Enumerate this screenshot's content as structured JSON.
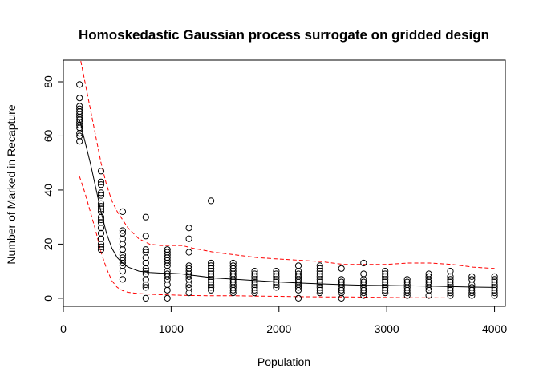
{
  "chart_data": {
    "type": "scatter",
    "title": "Homoskedastic Gaussian process surrogate on gridded design",
    "xlabel": "Population",
    "ylabel": "Number of Marked in Recapture",
    "xlim": [
      0,
      4100
    ],
    "ylim": [
      -3,
      88
    ],
    "x_ticks": [
      0,
      1000,
      2000,
      3000,
      4000
    ],
    "y_ticks": [
      0,
      20,
      40,
      60,
      80
    ],
    "grid": false,
    "colors": {
      "points": "#000000",
      "mean": "#000000",
      "bands": "#ff0000"
    },
    "points": [
      [
        150,
        79
      ],
      [
        150,
        74
      ],
      [
        150,
        71
      ],
      [
        150,
        70
      ],
      [
        150,
        69
      ],
      [
        150,
        68
      ],
      [
        150,
        67
      ],
      [
        150,
        66
      ],
      [
        150,
        65
      ],
      [
        150,
        64
      ],
      [
        150,
        63
      ],
      [
        150,
        61
      ],
      [
        150,
        60
      ],
      [
        150,
        58
      ],
      [
        350,
        47
      ],
      [
        350,
        43
      ],
      [
        350,
        42
      ],
      [
        350,
        39
      ],
      [
        350,
        38
      ],
      [
        350,
        35
      ],
      [
        350,
        34
      ],
      [
        350,
        33
      ],
      [
        350,
        32
      ],
      [
        350,
        30
      ],
      [
        350,
        29
      ],
      [
        350,
        28
      ],
      [
        350,
        26
      ],
      [
        350,
        24
      ],
      [
        350,
        22
      ],
      [
        350,
        20
      ],
      [
        350,
        19
      ],
      [
        350,
        18
      ],
      [
        550,
        32
      ],
      [
        550,
        25
      ],
      [
        550,
        24
      ],
      [
        550,
        22
      ],
      [
        550,
        20
      ],
      [
        550,
        18
      ],
      [
        550,
        16
      ],
      [
        550,
        15
      ],
      [
        550,
        14
      ],
      [
        550,
        13
      ],
      [
        550,
        12
      ],
      [
        550,
        10
      ],
      [
        550,
        7
      ],
      [
        765,
        30
      ],
      [
        765,
        23
      ],
      [
        765,
        18
      ],
      [
        765,
        17
      ],
      [
        765,
        15
      ],
      [
        765,
        13
      ],
      [
        765,
        11
      ],
      [
        765,
        10
      ],
      [
        765,
        9
      ],
      [
        765,
        7
      ],
      [
        765,
        5
      ],
      [
        765,
        4
      ],
      [
        765,
        0
      ],
      [
        965,
        18
      ],
      [
        965,
        17
      ],
      [
        965,
        16
      ],
      [
        965,
        15
      ],
      [
        965,
        14
      ],
      [
        965,
        13
      ],
      [
        965,
        12
      ],
      [
        965,
        10
      ],
      [
        965,
        9
      ],
      [
        965,
        8
      ],
      [
        965,
        7
      ],
      [
        965,
        5
      ],
      [
        965,
        3
      ],
      [
        965,
        0
      ],
      [
        1165,
        26
      ],
      [
        1165,
        22
      ],
      [
        1165,
        17
      ],
      [
        1165,
        12
      ],
      [
        1165,
        11
      ],
      [
        1165,
        10
      ],
      [
        1165,
        9
      ],
      [
        1165,
        8
      ],
      [
        1165,
        7
      ],
      [
        1165,
        5
      ],
      [
        1165,
        4
      ],
      [
        1165,
        2
      ],
      [
        1370,
        36
      ],
      [
        1370,
        13
      ],
      [
        1370,
        12
      ],
      [
        1370,
        11
      ],
      [
        1370,
        10
      ],
      [
        1370,
        9
      ],
      [
        1370,
        8
      ],
      [
        1370,
        7
      ],
      [
        1370,
        6
      ],
      [
        1370,
        5
      ],
      [
        1370,
        4
      ],
      [
        1370,
        3
      ],
      [
        1575,
        13
      ],
      [
        1575,
        12
      ],
      [
        1575,
        11
      ],
      [
        1575,
        10
      ],
      [
        1575,
        9
      ],
      [
        1575,
        8
      ],
      [
        1575,
        7
      ],
      [
        1575,
        6
      ],
      [
        1575,
        5
      ],
      [
        1575,
        4
      ],
      [
        1575,
        3
      ],
      [
        1575,
        2
      ],
      [
        1775,
        10
      ],
      [
        1775,
        9
      ],
      [
        1775,
        8
      ],
      [
        1775,
        7
      ],
      [
        1775,
        6
      ],
      [
        1775,
        5
      ],
      [
        1775,
        4
      ],
      [
        1775,
        3
      ],
      [
        1775,
        2
      ],
      [
        1975,
        10
      ],
      [
        1975,
        9
      ],
      [
        1975,
        8
      ],
      [
        1975,
        7
      ],
      [
        1975,
        6
      ],
      [
        1975,
        5
      ],
      [
        1975,
        4
      ],
      [
        2180,
        12
      ],
      [
        2180,
        10
      ],
      [
        2180,
        9
      ],
      [
        2180,
        8
      ],
      [
        2180,
        7
      ],
      [
        2180,
        6
      ],
      [
        2180,
        5
      ],
      [
        2180,
        4
      ],
      [
        2180,
        3
      ],
      [
        2180,
        0
      ],
      [
        2380,
        12
      ],
      [
        2380,
        11
      ],
      [
        2380,
        10
      ],
      [
        2380,
        9
      ],
      [
        2380,
        8
      ],
      [
        2380,
        7
      ],
      [
        2380,
        6
      ],
      [
        2380,
        5
      ],
      [
        2380,
        4
      ],
      [
        2380,
        3
      ],
      [
        2380,
        2
      ],
      [
        2580,
        11
      ],
      [
        2580,
        7
      ],
      [
        2580,
        6
      ],
      [
        2580,
        5
      ],
      [
        2580,
        4
      ],
      [
        2580,
        3
      ],
      [
        2580,
        2
      ],
      [
        2580,
        0
      ],
      [
        2785,
        13
      ],
      [
        2785,
        9
      ],
      [
        2785,
        7
      ],
      [
        2785,
        6
      ],
      [
        2785,
        5
      ],
      [
        2785,
        4
      ],
      [
        2785,
        3
      ],
      [
        2785,
        2
      ],
      [
        2785,
        1
      ],
      [
        2985,
        10
      ],
      [
        2985,
        9
      ],
      [
        2985,
        8
      ],
      [
        2985,
        7
      ],
      [
        2985,
        6
      ],
      [
        2985,
        5
      ],
      [
        2985,
        4
      ],
      [
        2985,
        3
      ],
      [
        2985,
        2
      ],
      [
        3190,
        7
      ],
      [
        3190,
        6
      ],
      [
        3190,
        5
      ],
      [
        3190,
        4
      ],
      [
        3190,
        3
      ],
      [
        3190,
        2
      ],
      [
        3190,
        1
      ],
      [
        3390,
        9
      ],
      [
        3390,
        8
      ],
      [
        3390,
        7
      ],
      [
        3390,
        6
      ],
      [
        3390,
        5
      ],
      [
        3390,
        4
      ],
      [
        3390,
        3
      ],
      [
        3390,
        1
      ],
      [
        3590,
        10
      ],
      [
        3590,
        8
      ],
      [
        3590,
        7
      ],
      [
        3590,
        6
      ],
      [
        3590,
        5
      ],
      [
        3590,
        4
      ],
      [
        3590,
        3
      ],
      [
        3590,
        2
      ],
      [
        3590,
        1
      ],
      [
        3790,
        8
      ],
      [
        3790,
        7
      ],
      [
        3790,
        5
      ],
      [
        3790,
        4
      ],
      [
        3790,
        3
      ],
      [
        3790,
        2
      ],
      [
        3790,
        1
      ],
      [
        4000,
        8
      ],
      [
        4000,
        7
      ],
      [
        4000,
        6
      ],
      [
        4000,
        5
      ],
      [
        4000,
        4
      ],
      [
        4000,
        3
      ],
      [
        4000,
        2
      ],
      [
        4000,
        1
      ]
    ],
    "mean_line": {
      "x": [
        150,
        200,
        250,
        300,
        350,
        400,
        450,
        500,
        550,
        600,
        700,
        800,
        900,
        1000,
        1100,
        1200,
        1400,
        1600,
        1800,
        2000,
        2200,
        2400,
        2600,
        2800,
        3000,
        3200,
        3400,
        3600,
        3800,
        4000
      ],
      "y": [
        66,
        58,
        50,
        41,
        32,
        24,
        18.5,
        15,
        13,
        11.5,
        10,
        9.5,
        9.3,
        9.2,
        9,
        8.5,
        7.5,
        7,
        6.5,
        6,
        5.6,
        5.3,
        5,
        4.8,
        4.7,
        4.6,
        4.5,
        4.3,
        4.1,
        4.0
      ]
    },
    "upper_band": {
      "x": [
        150,
        200,
        250,
        300,
        350,
        400,
        450,
        500,
        550,
        600,
        700,
        800,
        900,
        1000,
        1100,
        1200,
        1400,
        1600,
        1800,
        2000,
        2200,
        2400,
        2600,
        2800,
        3000,
        3200,
        3400,
        3600,
        3800,
        4000
      ],
      "y": [
        90,
        80,
        70,
        60,
        50,
        42,
        36,
        32,
        29,
        26,
        22,
        20,
        19.5,
        19.5,
        19.5,
        18.5,
        17,
        16,
        15,
        14.5,
        14,
        13.5,
        12.5,
        12.5,
        12.5,
        13,
        13,
        12.5,
        11.5,
        11
      ]
    },
    "lower_band": {
      "x": [
        150,
        200,
        250,
        300,
        350,
        400,
        450,
        500,
        550,
        600,
        700,
        800,
        900,
        1000,
        1100,
        1200,
        1400,
        1600,
        1800,
        2000,
        2200,
        2400,
        2600,
        2800,
        3000,
        3200,
        3400,
        3600,
        3800,
        4000
      ],
      "y": [
        45,
        39,
        32,
        25,
        17,
        11,
        6.5,
        4,
        2.8,
        2.2,
        1.7,
        1.5,
        1.3,
        1.2,
        1.1,
        1.0,
        0.9,
        0.9,
        0.8,
        0.7,
        0.6,
        0.5,
        0.5,
        0.4,
        0.3,
        0.2,
        0.2,
        0.1,
        0.1,
        0.1
      ]
    }
  }
}
